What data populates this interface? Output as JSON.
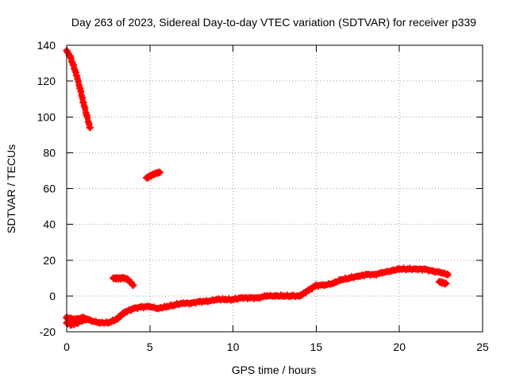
{
  "chart_data": {
    "type": "scatter",
    "title": "Day 263 of 2023, Sidereal Day-to-day VTEC variation (SDTVAR) for receiver p339",
    "xlabel": "GPS time / hours",
    "ylabel": "SDTVAR / TECUs",
    "xlim": [
      0,
      25
    ],
    "ylim": [
      -20,
      140
    ],
    "xticks": [
      0,
      5,
      10,
      15,
      20,
      25
    ],
    "xtick_labels": [
      "0",
      "5",
      "10",
      "15",
      "20",
      "25"
    ],
    "yticks": [
      -20,
      0,
      20,
      40,
      60,
      80,
      100,
      120,
      140
    ],
    "ytick_labels": [
      "-20",
      "0",
      "20",
      "40",
      "60",
      "80",
      "100",
      "120",
      "140"
    ],
    "grid": true,
    "legend": "none",
    "series": [
      {
        "name": "upper descending arc",
        "color": "#ff0000",
        "x": [
          0.0,
          0.2,
          0.4,
          0.6,
          0.8,
          1.0,
          1.2,
          1.4
        ],
        "y": [
          137,
          134,
          129,
          123,
          116,
          108,
          101,
          94
        ]
      },
      {
        "name": "short mid-level arc",
        "color": "#ff0000",
        "x": [
          4.8,
          5.0,
          5.2,
          5.4,
          5.6
        ],
        "y": [
          66,
          67,
          68,
          68.5,
          69
        ]
      },
      {
        "name": "small arc near 3 h",
        "color": "#ff0000",
        "x": [
          2.8,
          3.0,
          3.2,
          3.4,
          3.6,
          3.8,
          4.0
        ],
        "y": [
          10,
          10,
          10,
          10,
          9.5,
          8,
          6
        ]
      },
      {
        "name": "main daily arc",
        "color": "#ff0000",
        "x": [
          0.0,
          0.5,
          1.0,
          1.5,
          2.0,
          2.5,
          3.0,
          3.5,
          4.0,
          4.5,
          5.0,
          5.5,
          6.0,
          6.5,
          7.0,
          7.5,
          8.0,
          8.5,
          9.0,
          9.5,
          10.0,
          10.5,
          11.0,
          11.5,
          12.0,
          12.5,
          13.0,
          13.5,
          14.0,
          14.5,
          15.0,
          15.5,
          16.0,
          16.5,
          17.0,
          17.5,
          18.0,
          18.5,
          19.0,
          19.5,
          20.0,
          20.5,
          21.0,
          21.5,
          22.0,
          22.5,
          22.9
        ],
        "y": [
          -12,
          -13,
          -12,
          -14,
          -15,
          -15,
          -13,
          -9,
          -7,
          -6,
          -6,
          -7,
          -6,
          -5,
          -4,
          -4,
          -3,
          -3,
          -2,
          -2,
          -2,
          -1,
          -1,
          -1,
          0,
          0,
          0,
          0,
          0,
          3,
          6,
          6,
          7,
          9,
          10,
          11,
          12,
          12,
          13,
          14,
          15,
          15,
          15,
          15,
          14,
          13,
          12
        ]
      },
      {
        "name": "early lower fragment",
        "color": "#ff0000",
        "x": [
          0.0,
          0.3,
          0.6,
          0.9,
          1.2
        ],
        "y": [
          -15,
          -16,
          -15,
          -14,
          -13
        ]
      },
      {
        "name": "late evening fragment",
        "color": "#ff0000",
        "x": [
          22.4,
          22.6,
          22.8
        ],
        "y": [
          8,
          7.5,
          7
        ]
      }
    ]
  }
}
